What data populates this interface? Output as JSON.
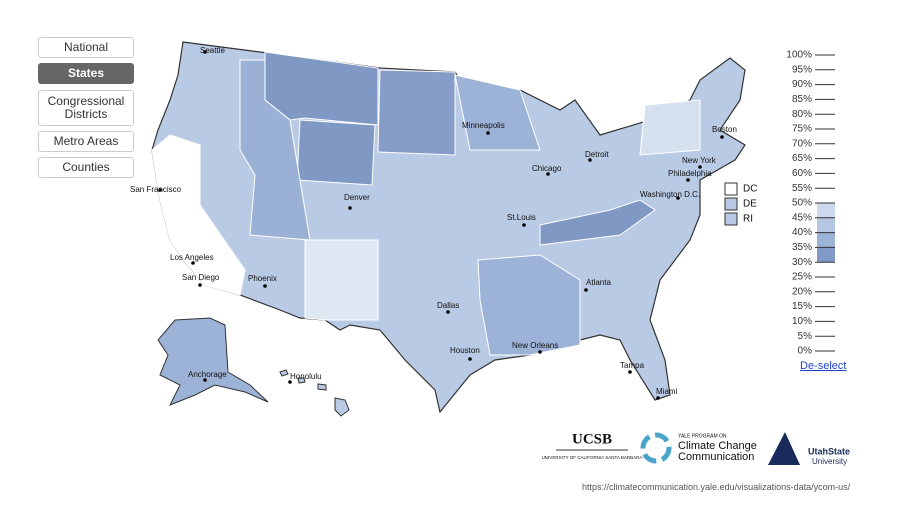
{
  "menu": {
    "buttons": [
      "National",
      "States",
      "Congressional Districts",
      "Metro Areas",
      "Counties"
    ],
    "active": "States"
  },
  "cities": [
    "Seattle",
    "San Francisco",
    "Los Angeles",
    "San Diego",
    "Phoenix",
    "Denver",
    "Dallas",
    "Houston",
    "Minneapolis",
    "Chicago",
    "Detroit",
    "St.Louis",
    "Atlanta",
    "New Orleans",
    "Tampa",
    "Miami",
    "Boston",
    "New York",
    "Philadelphia",
    "Washington D.C.",
    "Anchorage",
    "Honolulu"
  ],
  "small_states": [
    "DC",
    "DE",
    "RI"
  ],
  "legend": {
    "ticks": [
      {
        "value": 100,
        "label": "100%"
      },
      {
        "value": 95,
        "label": "95%"
      },
      {
        "value": 90,
        "label": "90%"
      },
      {
        "value": 85,
        "label": "85%"
      },
      {
        "value": 80,
        "label": "80%"
      },
      {
        "value": 75,
        "label": "75%"
      },
      {
        "value": 70,
        "label": "70%"
      },
      {
        "value": 65,
        "label": "65%"
      },
      {
        "value": 60,
        "label": "60%"
      },
      {
        "value": 55,
        "label": "55%"
      },
      {
        "value": 50,
        "label": "50%"
      },
      {
        "value": 45,
        "label": "45%"
      },
      {
        "value": 40,
        "label": "40%"
      },
      {
        "value": 35,
        "label": "35%"
      },
      {
        "value": 30,
        "label": "30%"
      },
      {
        "value": 25,
        "label": "25%"
      },
      {
        "value": 20,
        "label": "20%"
      },
      {
        "value": 15,
        "label": "15%"
      },
      {
        "value": 10,
        "label": "10%"
      },
      {
        "value": 5,
        "label": "5%"
      },
      {
        "value": 0,
        "label": "0%"
      }
    ],
    "scale": [
      {
        "from": 45,
        "to": 50,
        "color": "#ccd9ec"
      },
      {
        "from": 40,
        "to": 45,
        "color": "#b5c6e2"
      },
      {
        "from": 35,
        "to": 40,
        "color": "#9db2d7"
      },
      {
        "from": 30,
        "to": 35,
        "color": "#8199c6"
      }
    ],
    "deselect": "De-select"
  },
  "logos": {
    "ucsb": "UCSB",
    "ucsb_sub": "UNIVERSITY OF CALIFORNIA SANTA BARBARA",
    "yale_top": "YALE PROGRAM ON",
    "yale_line1": "Climate Change",
    "yale_line2": "Communication",
    "usu_line1": "UtahState",
    "usu_line2": "University"
  },
  "url": "https://climatecommunication.yale.edu/visualizations-data/ycom-us/"
}
